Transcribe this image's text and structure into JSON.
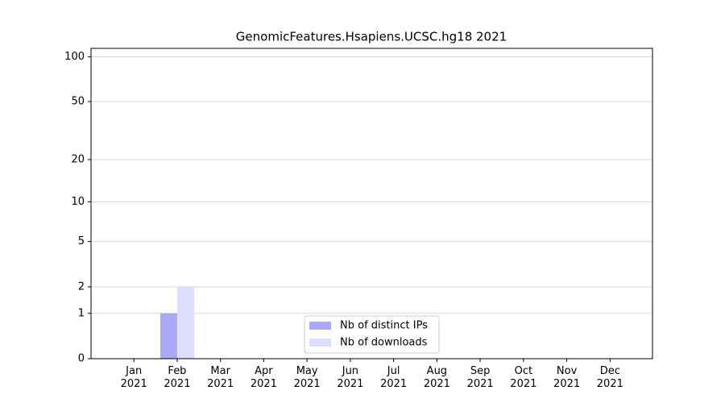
{
  "chart_data": {
    "type": "bar",
    "title": "GenomicFeatures.Hsapiens.UCSC.hg18 2021",
    "categories": [
      "Jan\n2021",
      "Feb\n2021",
      "Mar\n2021",
      "Apr\n2021",
      "May\n2021",
      "Jun\n2021",
      "Jul\n2021",
      "Aug\n2021",
      "Sep\n2021",
      "Oct\n2021",
      "Nov\n2021",
      "Dec\n2021"
    ],
    "series": [
      {
        "name": "Nb of distinct IPs",
        "color": "#aaaaf8",
        "values": [
          0,
          1,
          0,
          0,
          0,
          0,
          0,
          0,
          0,
          0,
          0,
          0
        ]
      },
      {
        "name": "Nb of downloads",
        "color": "#ddddfc",
        "values": [
          0,
          2,
          0,
          0,
          0,
          0,
          0,
          0,
          0,
          0,
          0,
          0
        ]
      }
    ],
    "yscale": "log1p",
    "ylim": [
      0,
      114
    ],
    "yticks": [
      0,
      1,
      2,
      5,
      10,
      20,
      50,
      100
    ],
    "grid": true,
    "legend": "lower center"
  }
}
